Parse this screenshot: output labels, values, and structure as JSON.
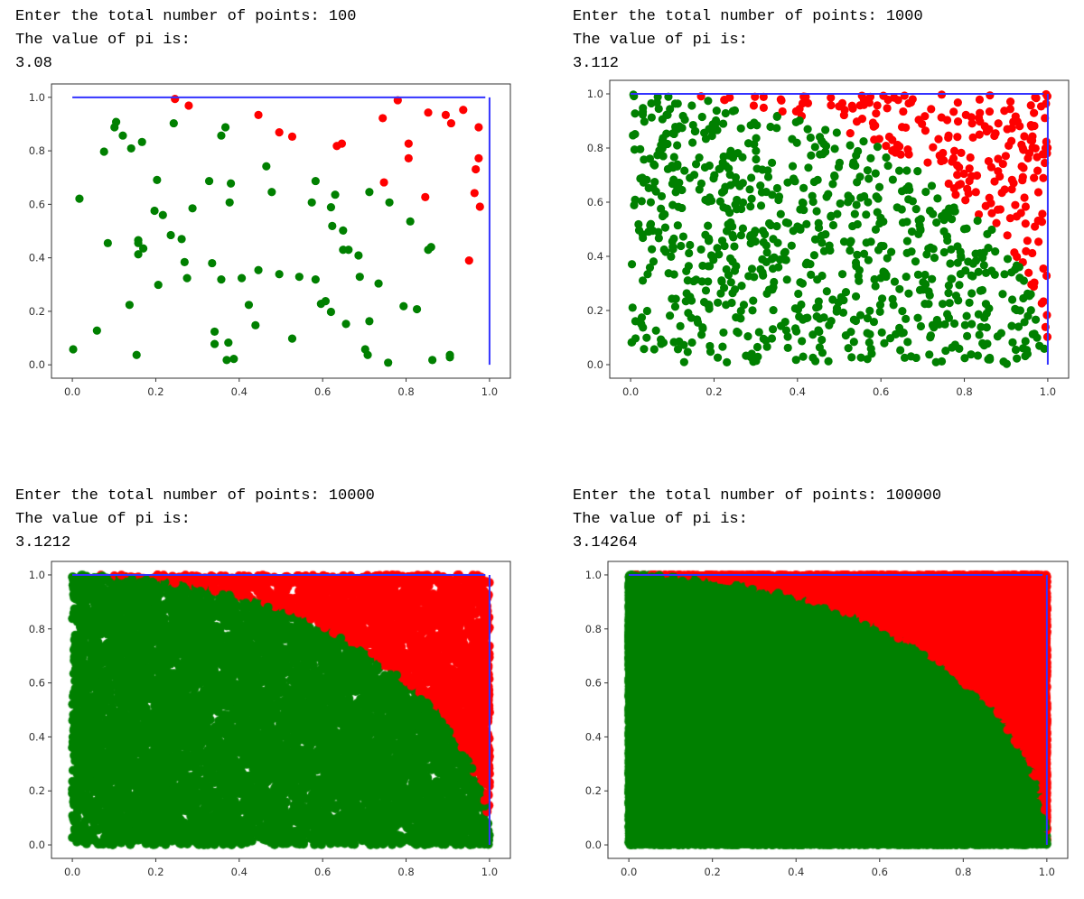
{
  "colors": {
    "inside": "#008000",
    "outside": "#ff0000",
    "boundary": "#3333ff"
  },
  "chart_data": [
    {
      "type": "scatter",
      "prompt": "Enter the total number of points: 100",
      "result_label": "The value of pi is:",
      "result": "3.08",
      "n_points": 100,
      "xlim": [
        -0.05,
        1.05
      ],
      "ylim": [
        -0.05,
        1.05
      ],
      "xticks": [
        "0.0",
        "0.2",
        "0.4",
        "0.6",
        "0.8",
        "1.0"
      ],
      "yticks": [
        "0.0",
        "0.2",
        "0.4",
        "0.6",
        "0.8",
        "1.0"
      ],
      "boundary_lines": [
        [
          [
            0,
            1
          ],
          [
            0.99,
            1
          ]
        ],
        [
          [
            1,
            1
          ],
          [
            1,
            0
          ]
        ]
      ],
      "outside": [
        [
          0.246,
          0.994
        ],
        [
          0.279,
          0.969
        ],
        [
          0.446,
          0.934
        ],
        [
          0.496,
          0.869
        ],
        [
          0.527,
          0.853
        ],
        [
          0.634,
          0.818
        ],
        [
          0.646,
          0.827
        ],
        [
          0.744,
          0.922
        ],
        [
          0.78,
          0.989
        ],
        [
          0.747,
          0.682
        ],
        [
          0.806,
          0.827
        ],
        [
          0.806,
          0.772
        ],
        [
          0.846,
          0.627
        ],
        [
          0.853,
          0.943
        ],
        [
          0.895,
          0.934
        ],
        [
          0.908,
          0.903
        ],
        [
          0.937,
          0.953
        ],
        [
          0.974,
          0.888
        ],
        [
          0.974,
          0.772
        ],
        [
          0.967,
          0.731
        ],
        [
          0.964,
          0.642
        ],
        [
          0.977,
          0.591
        ],
        [
          0.951,
          0.39
        ]
      ],
      "inside": [
        [
          0.002,
          0.058
        ],
        [
          0.017,
          0.621
        ],
        [
          0.059,
          0.128
        ],
        [
          0.076,
          0.797
        ],
        [
          0.085,
          0.455
        ],
        [
          0.101,
          0.888
        ],
        [
          0.105,
          0.908
        ],
        [
          0.121,
          0.857
        ],
        [
          0.141,
          0.809
        ],
        [
          0.137,
          0.224
        ],
        [
          0.167,
          0.833
        ],
        [
          0.158,
          0.466
        ],
        [
          0.158,
          0.455
        ],
        [
          0.17,
          0.435
        ],
        [
          0.158,
          0.413
        ],
        [
          0.154,
          0.037
        ],
        [
          0.197,
          0.576
        ],
        [
          0.203,
          0.691
        ],
        [
          0.217,
          0.56
        ],
        [
          0.206,
          0.299
        ],
        [
          0.236,
          0.485
        ],
        [
          0.243,
          0.903
        ],
        [
          0.262,
          0.47
        ],
        [
          0.269,
          0.384
        ],
        [
          0.275,
          0.324
        ],
        [
          0.288,
          0.585
        ],
        [
          0.328,
          0.687
        ],
        [
          0.335,
          0.38
        ],
        [
          0.341,
          0.124
        ],
        [
          0.341,
          0.078
        ],
        [
          0.357,
          0.857
        ],
        [
          0.367,
          0.888
        ],
        [
          0.357,
          0.319
        ],
        [
          0.377,
          0.607
        ],
        [
          0.38,
          0.678
        ],
        [
          0.374,
          0.083
        ],
        [
          0.37,
          0.018
        ],
        [
          0.387,
          0.022
        ],
        [
          0.406,
          0.324
        ],
        [
          0.423,
          0.224
        ],
        [
          0.439,
          0.148
        ],
        [
          0.446,
          0.354
        ],
        [
          0.465,
          0.742
        ],
        [
          0.478,
          0.646
        ],
        [
          0.496,
          0.339
        ],
        [
          0.527,
          0.098
        ],
        [
          0.544,
          0.329
        ],
        [
          0.574,
          0.607
        ],
        [
          0.583,
          0.687
        ],
        [
          0.583,
          0.319
        ],
        [
          0.596,
          0.228
        ],
        [
          0.607,
          0.238
        ],
        [
          0.62,
          0.589
        ],
        [
          0.623,
          0.519
        ],
        [
          0.62,
          0.198
        ],
        [
          0.63,
          0.636
        ],
        [
          0.649,
          0.502
        ],
        [
          0.649,
          0.43
        ],
        [
          0.662,
          0.43
        ],
        [
          0.656,
          0.153
        ],
        [
          0.686,
          0.409
        ],
        [
          0.689,
          0.329
        ],
        [
          0.702,
          0.058
        ],
        [
          0.708,
          0.037
        ],
        [
          0.712,
          0.646
        ],
        [
          0.712,
          0.163
        ],
        [
          0.734,
          0.304
        ],
        [
          0.76,
          0.607
        ],
        [
          0.757,
          0.008
        ],
        [
          0.794,
          0.219
        ],
        [
          0.81,
          0.536
        ],
        [
          0.826,
          0.208
        ],
        [
          0.853,
          0.43
        ],
        [
          0.86,
          0.44
        ],
        [
          0.863,
          0.018
        ],
        [
          0.905,
          0.037
        ],
        [
          0.905,
          0.028
        ]
      ]
    },
    {
      "type": "scatter",
      "prompt": "Enter the total number of points: 1000",
      "result_label": "The value of pi is:",
      "result": "3.112",
      "n_points": 1000,
      "xlim": [
        -0.05,
        1.05
      ],
      "ylim": [
        -0.05,
        1.05
      ],
      "xticks": [
        "0.0",
        "0.2",
        "0.4",
        "0.6",
        "0.8",
        "1.0"
      ],
      "yticks": [
        "0.0",
        "0.2",
        "0.4",
        "0.6",
        "0.8",
        "1.0"
      ],
      "boundary_lines": [
        [
          [
            0,
            1
          ],
          [
            0.99,
            1
          ]
        ],
        [
          [
            1,
            1
          ],
          [
            1,
            0
          ]
        ]
      ]
    },
    {
      "type": "scatter",
      "prompt": "Enter the total number of points: 10000",
      "result_label": "The value of pi is:",
      "result": "3.1212",
      "n_points": 10000,
      "xlim": [
        -0.05,
        1.05
      ],
      "ylim": [
        -0.05,
        1.05
      ],
      "xticks": [
        "0.0",
        "0.2",
        "0.4",
        "0.6",
        "0.8",
        "1.0"
      ],
      "yticks": [
        "0.0",
        "0.2",
        "0.4",
        "0.6",
        "0.8",
        "1.0"
      ],
      "boundary_lines": [
        [
          [
            0,
            1
          ],
          [
            0.99,
            1
          ]
        ],
        [
          [
            1,
            1
          ],
          [
            1,
            0
          ]
        ]
      ]
    },
    {
      "type": "scatter",
      "prompt": "Enter the total number of points: 100000",
      "result_label": "The value of pi is:",
      "result": "3.14264",
      "n_points": 100000,
      "xlim": [
        -0.05,
        1.05
      ],
      "ylim": [
        -0.05,
        1.05
      ],
      "xticks": [
        "0.0",
        "0.2",
        "0.4",
        "0.6",
        "0.8",
        "1.0"
      ],
      "yticks": [
        "0.0",
        "0.2",
        "0.4",
        "0.6",
        "0.8",
        "1.0"
      ],
      "boundary_lines": [
        [
          [
            0,
            1
          ],
          [
            0.99,
            1
          ]
        ],
        [
          [
            1,
            1
          ],
          [
            1,
            0
          ]
        ]
      ]
    }
  ]
}
